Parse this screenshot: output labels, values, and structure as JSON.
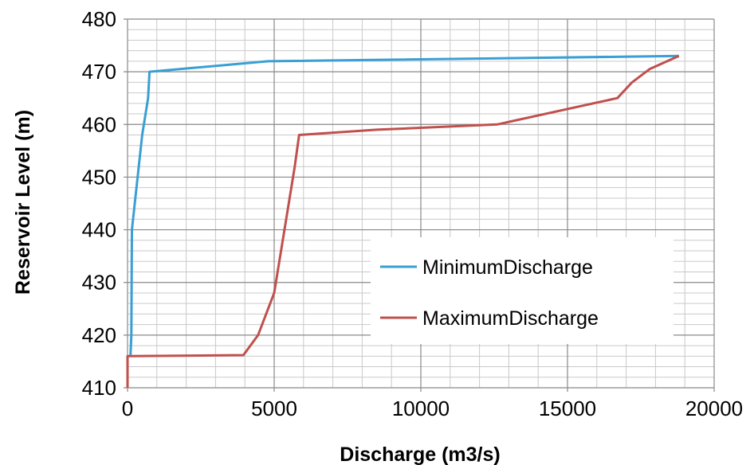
{
  "chart_data": {
    "type": "line",
    "title": "",
    "xlabel": "Discharge (m3/s)",
    "ylabel": "Reservoir Level (m)",
    "xlim": [
      0,
      20000
    ],
    "ylim": [
      410,
      480
    ],
    "x_ticks": [
      0,
      5000,
      10000,
      15000,
      20000
    ],
    "y_ticks": [
      410,
      420,
      430,
      440,
      450,
      460,
      470,
      480
    ],
    "x_tick_labels": [
      "0",
      "5000",
      "10000",
      "15000",
      "20000"
    ],
    "y_tick_labels": [
      "410",
      "420",
      "430",
      "440",
      "450",
      "460",
      "470",
      "480"
    ],
    "grid": true,
    "legend_position": "lower-right inside plot",
    "series": [
      {
        "name": "MinimumDischarge",
        "color": "#3a9fd4",
        "points": [
          [
            100,
            416
          ],
          [
            130,
            420
          ],
          [
            150,
            440
          ],
          [
            500,
            458
          ],
          [
            700,
            465
          ],
          [
            750,
            470
          ],
          [
            4800,
            472
          ],
          [
            18800,
            473
          ]
        ]
      },
      {
        "name": "MaximumDischarge",
        "color": "#c0504d",
        "points": [
          [
            0,
            410
          ],
          [
            0,
            416
          ],
          [
            3950,
            416.2
          ],
          [
            4450,
            420
          ],
          [
            5000,
            428
          ],
          [
            5350,
            440
          ],
          [
            5700,
            452
          ],
          [
            5850,
            458
          ],
          [
            8500,
            459
          ],
          [
            12600,
            460
          ],
          [
            16700,
            465
          ],
          [
            17200,
            468
          ],
          [
            17800,
            470.5
          ],
          [
            18800,
            473
          ]
        ]
      }
    ]
  }
}
